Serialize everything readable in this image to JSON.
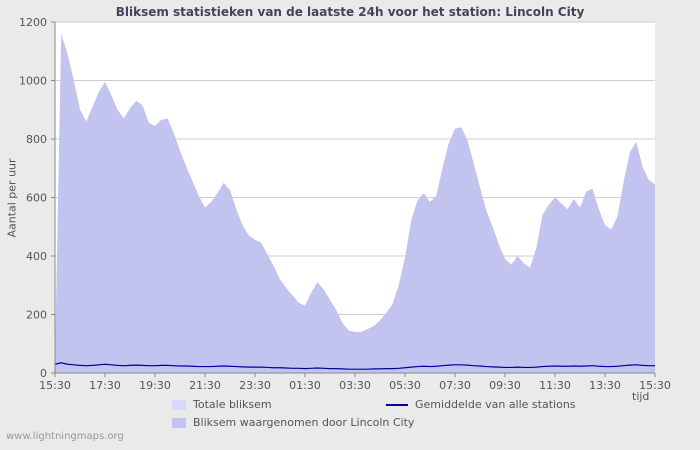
{
  "footer": {
    "watermark": "www.lightningmaps.org"
  },
  "legend": [
    {
      "label": "Totale bliksem",
      "kind": "area",
      "color": "#d8d8f8"
    },
    {
      "label": "Bliksem waargenomen door Lincoln City",
      "kind": "area",
      "color": "#c3c3f0"
    },
    {
      "label": "Gemiddelde van alle stations",
      "kind": "line",
      "color": "#000099"
    }
  ],
  "chart_data": {
    "type": "area",
    "title": "Bliksem statistieken van de laatste 24h voor het station: Lincoln City",
    "xlabel": "tijd",
    "ylabel": "Aantal per uur",
    "ylim": [
      0,
      1200
    ],
    "y_ticks": [
      0,
      200,
      400,
      600,
      800,
      1000,
      1200
    ],
    "x_ticks": [
      "15:30",
      "17:30",
      "19:30",
      "21:30",
      "23:30",
      "01:30",
      "03:30",
      "05:30",
      "07:30",
      "09:30",
      "11:30",
      "13:30",
      "15:30"
    ],
    "x_step_minutes": 15,
    "grid": "horizontal",
    "legend_position": "bottom",
    "colors": {
      "plot_bg": "#ffffff",
      "grid": "#cccccc",
      "axis": "#888888",
      "page_bg": "#eaeaea"
    },
    "series": [
      {
        "id": "totale-bliksem",
        "name": "Totale bliksem",
        "kind": "area",
        "color": "#d8d8f8",
        "values": [
          40,
          1160,
          1090,
          1000,
          900,
          860,
          910,
          960,
          995,
          950,
          900,
          870,
          905,
          930,
          915,
          855,
          845,
          865,
          870,
          820,
          760,
          705,
          655,
          605,
          565,
          585,
          615,
          650,
          625,
          560,
          505,
          470,
          455,
          445,
          405,
          365,
          320,
          290,
          265,
          240,
          230,
          275,
          310,
          285,
          250,
          215,
          170,
          145,
          140,
          140,
          150,
          160,
          180,
          205,
          235,
          300,
          395,
          520,
          590,
          615,
          585,
          605,
          700,
          785,
          835,
          840,
          795,
          715,
          635,
          555,
          500,
          440,
          390,
          370,
          400,
          375,
          360,
          425,
          540,
          575,
          600,
          580,
          560,
          595,
          565,
          620,
          630,
          560,
          505,
          490,
          535,
          655,
          755,
          790,
          705,
          660,
          645
        ]
      },
      {
        "id": "lincoln-city",
        "name": "Bliksem waargenomen door Lincoln City",
        "kind": "area",
        "color": "#c3c3f0",
        "values": [
          40,
          1160,
          1090,
          1000,
          900,
          860,
          910,
          960,
          995,
          950,
          900,
          870,
          905,
          930,
          915,
          855,
          845,
          865,
          870,
          820,
          760,
          705,
          655,
          605,
          565,
          585,
          615,
          650,
          625,
          560,
          505,
          470,
          455,
          445,
          405,
          365,
          320,
          290,
          265,
          240,
          230,
          275,
          310,
          285,
          250,
          215,
          170,
          145,
          140,
          140,
          150,
          160,
          180,
          205,
          235,
          300,
          395,
          520,
          590,
          615,
          585,
          605,
          700,
          785,
          835,
          840,
          795,
          715,
          635,
          555,
          500,
          440,
          390,
          370,
          400,
          375,
          360,
          425,
          540,
          575,
          600,
          580,
          560,
          595,
          565,
          620,
          630,
          560,
          505,
          490,
          535,
          655,
          755,
          790,
          705,
          660,
          645
        ]
      },
      {
        "id": "gemiddelde",
        "name": "Gemiddelde van alle stations",
        "kind": "line",
        "color": "#000099",
        "values": [
          30,
          35,
          30,
          28,
          26,
          25,
          26,
          28,
          30,
          28,
          26,
          25,
          26,
          27,
          26,
          25,
          25,
          26,
          26,
          25,
          24,
          24,
          23,
          22,
          22,
          22,
          23,
          24,
          23,
          22,
          21,
          20,
          20,
          20,
          19,
          18,
          18,
          17,
          16,
          16,
          15,
          16,
          17,
          16,
          15,
          15,
          14,
          13,
          13,
          13,
          13,
          14,
          14,
          15,
          15,
          16,
          18,
          20,
          22,
          23,
          22,
          23,
          25,
          27,
          28,
          28,
          27,
          25,
          24,
          22,
          21,
          20,
          19,
          19,
          20,
          19,
          19,
          20,
          22,
          23,
          24,
          23,
          23,
          24,
          23,
          24,
          25,
          23,
          22,
          22,
          23,
          25,
          27,
          28,
          26,
          25,
          25
        ]
      }
    ]
  }
}
